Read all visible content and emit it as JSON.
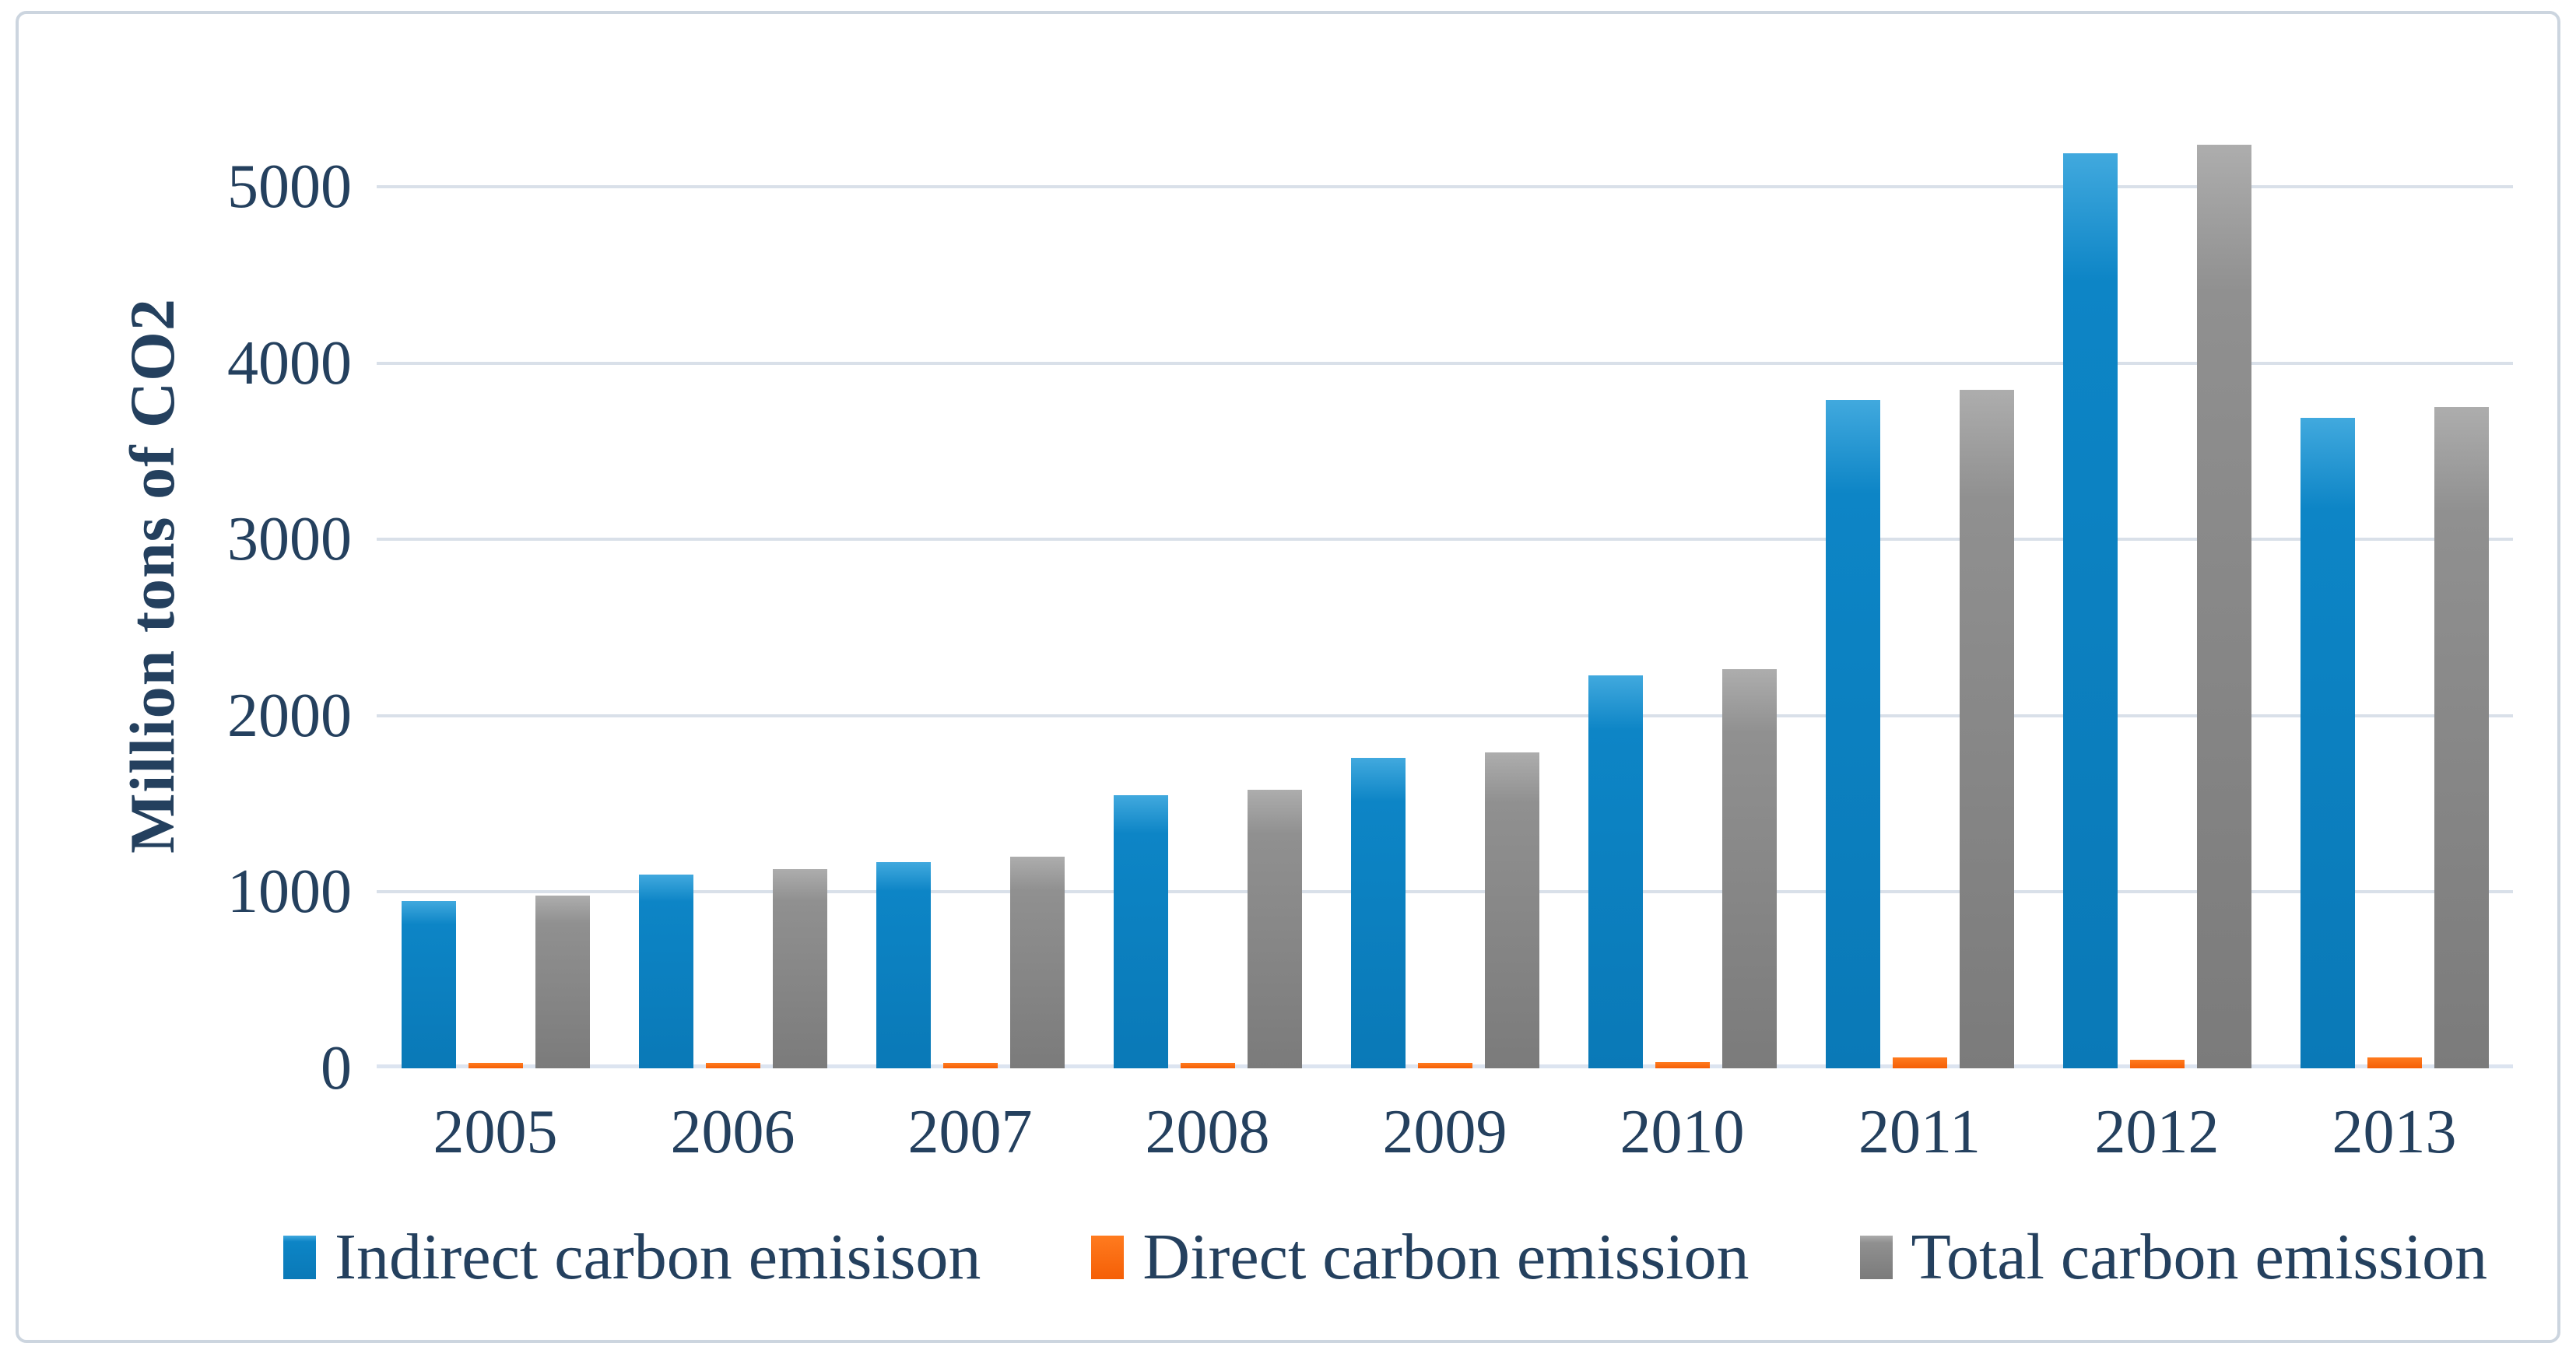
{
  "chart_data": {
    "type": "bar",
    "title": "",
    "xlabel": "",
    "ylabel": "Million tons of CO2",
    "categories": [
      "2005",
      "2006",
      "2007",
      "2008",
      "2009",
      "2010",
      "2011",
      "2012",
      "2013"
    ],
    "series": [
      {
        "key": "indirect",
        "name": "Indirect carbon emisison",
        "color": "#0d85c6",
        "values": [
          950,
          1100,
          1170,
          1550,
          1760,
          2230,
          3790,
          5190,
          3690
        ]
      },
      {
        "key": "direct",
        "name": "Direct carbon emission",
        "color": "#f55f06",
        "values": [
          30,
          30,
          30,
          30,
          30,
          35,
          60,
          50,
          60
        ]
      },
      {
        "key": "total",
        "name": "Total carbon emission",
        "color": "#909090",
        "values": [
          980,
          1130,
          1200,
          1580,
          1790,
          2265,
          3850,
          5240,
          3750
        ]
      }
    ],
    "ylim": [
      0,
      5000
    ],
    "yticks": [
      0,
      1000,
      2000,
      3000,
      4000,
      5000
    ],
    "grid": true,
    "gridline_color": "#d9e0e9",
    "text_color": "#24405e",
    "legend_position": "bottom"
  }
}
